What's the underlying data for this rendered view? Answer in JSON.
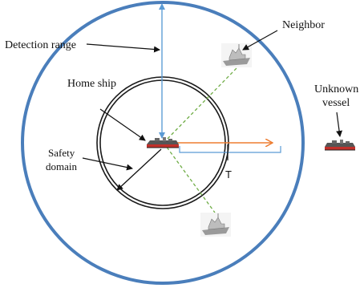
{
  "labels": {
    "detection_range": "Detection range",
    "neighbor": "Neighbor",
    "home_ship": "Home ship",
    "unknown_vessel_line1": "Unknown",
    "unknown_vessel_line2": "vessel",
    "safety_domain_line1": "Safety",
    "safety_domain_line2": "domain",
    "t_marker": "T"
  },
  "colors": {
    "detection_circle": "#4a7ebb",
    "detection_arrow": "#5b9bd5",
    "safety_circle": "#1a1a1a",
    "heading_vector": "#ed7d31",
    "neighbor_link": "#70ad47",
    "ship_hull_red": "#c0302a"
  },
  "icons": {
    "home_ship": "ship-icon",
    "unknown_vessel": "ship-icon",
    "neighbor_upper": "warship-icon",
    "neighbor_lower": "warship-icon"
  }
}
